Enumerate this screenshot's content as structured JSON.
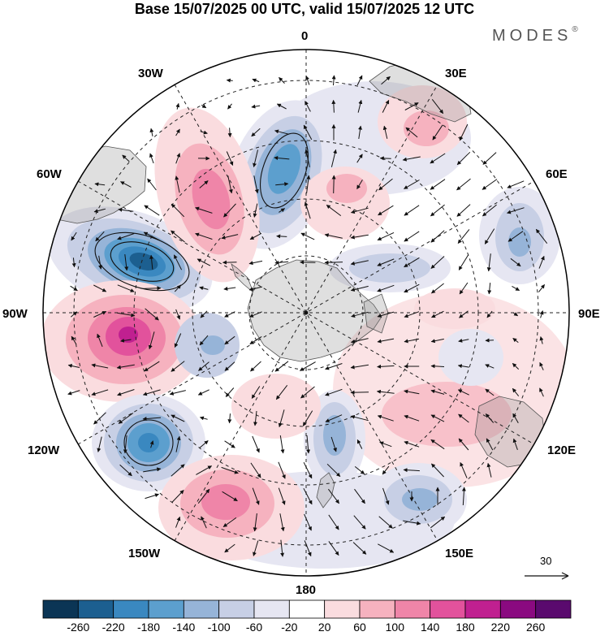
{
  "title": "Base 15/07/2025 00 UTC, valid 15/07/2025 12 UTC",
  "brand": "MODES",
  "brand_mark": "®",
  "longitude_labels": {
    "lon_0": "0",
    "lon_30e": "30E",
    "lon_60e": "60E",
    "lon_90e": "90E",
    "lon_120e": "120E",
    "lon_150e": "150E",
    "lon_180": "180",
    "lon_150w": "150W",
    "lon_120w": "120W",
    "lon_90w": "90W",
    "lon_60w": "60W",
    "lon_30w": "30W"
  },
  "vector_reference": "30",
  "colorbar": {
    "ticks": [
      "-260",
      "-220",
      "-180",
      "-140",
      "-100",
      "-60",
      "-20",
      "20",
      "60",
      "100",
      "140",
      "180",
      "220",
      "260"
    ],
    "colors": [
      "#0b3555",
      "#1c5f90",
      "#3a88c0",
      "#5c9fce",
      "#96b4d8",
      "#c7cfe5",
      "#e6e6f2",
      "#ffffff",
      "#fadcdf",
      "#f6b2bf",
      "#ef85a8",
      "#e2529c",
      "#c02090",
      "#8a0a80",
      "#5a0a6e"
    ]
  },
  "map_features": {
    "projection": "south-polar stereographic",
    "anomaly_centres": [
      {
        "name": "low-west-80W",
        "sign": "negative",
        "magnitude": -200
      },
      {
        "name": "high-west-100W",
        "sign": "positive",
        "magnitude": 180
      },
      {
        "name": "low-south-130W",
        "sign": "negative",
        "magnitude": -160
      },
      {
        "name": "high-south-150W",
        "sign": "positive",
        "magnitude": 140
      },
      {
        "name": "low-north-15W",
        "sign": "negative",
        "magnitude": -160
      },
      {
        "name": "high-north-35W",
        "sign": "positive",
        "magnitude": 140
      },
      {
        "name": "high-north-20E",
        "sign": "positive",
        "magnitude": 60
      },
      {
        "name": "low-east-70E",
        "sign": "negative",
        "magnitude": -60
      },
      {
        "name": "low-east-150E",
        "sign": "negative",
        "magnitude": -100
      },
      {
        "name": "low-south-170E",
        "sign": "negative",
        "magnitude": -100
      },
      {
        "name": "high-east-115E",
        "sign": "positive",
        "magnitude": 60
      }
    ]
  }
}
